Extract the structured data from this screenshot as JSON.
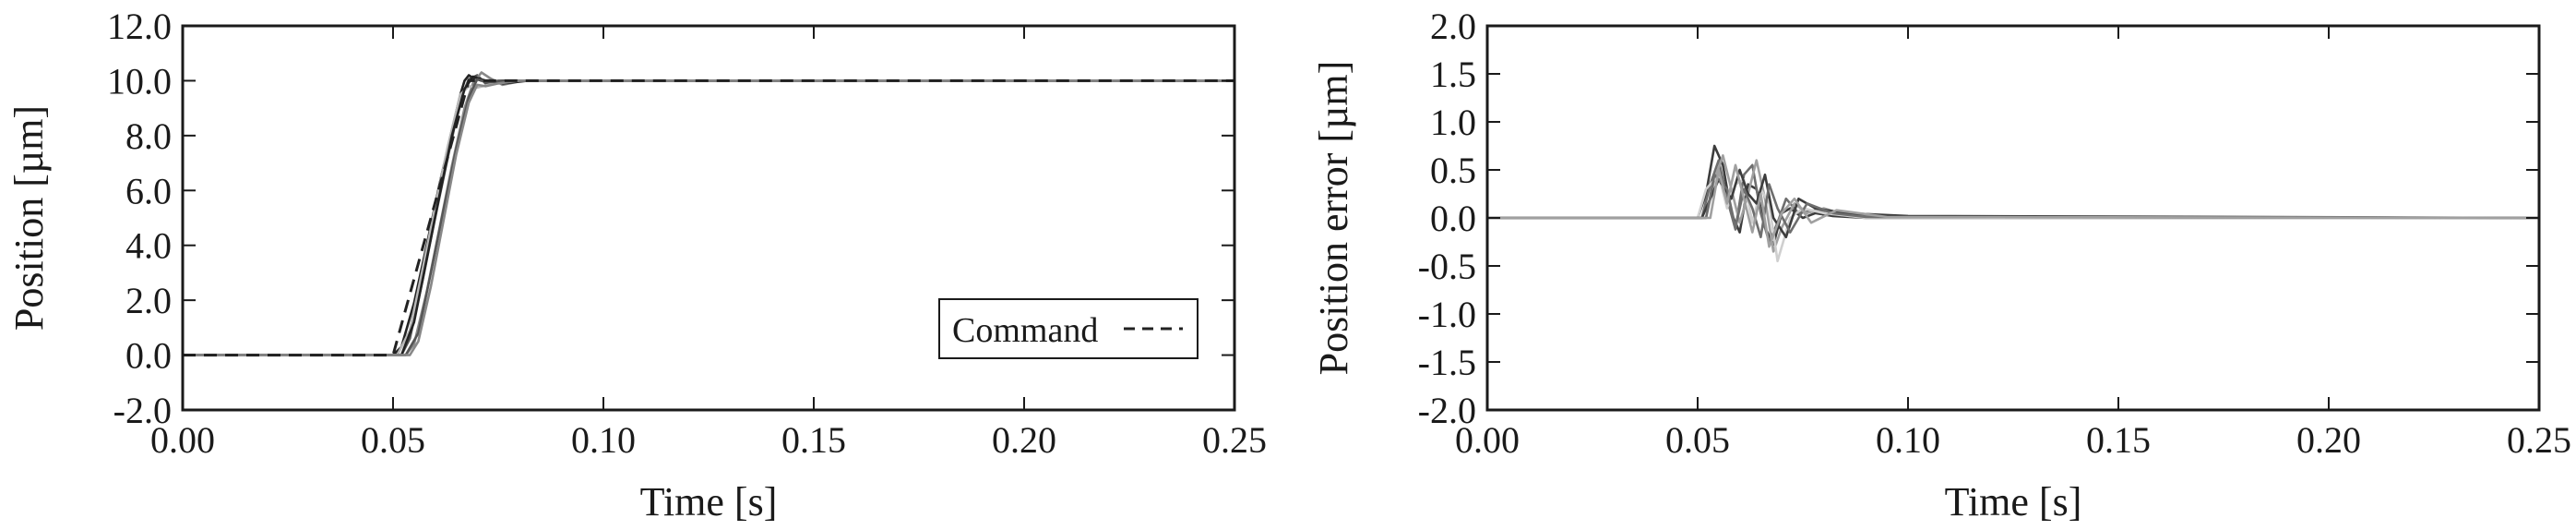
{
  "colors": {
    "axis": "#1a1a1a",
    "trace_palette": [
      "#222222",
      "#3c3c3c",
      "#555555",
      "#6e6e6e",
      "#888888",
      "#a0a0a0",
      "#b8b8b8",
      "#cfcfcf"
    ],
    "command": "#222222"
  },
  "chart_data": [
    {
      "type": "line",
      "xlabel": "Time [s]",
      "ylabel": "Position [µm]",
      "xlim": [
        0.0,
        0.25
      ],
      "ylim": [
        -2.0,
        12.0
      ],
      "xticks": [
        "0.00",
        "0.05",
        "0.10",
        "0.15",
        "0.20",
        "0.25"
      ],
      "yticks": [
        "-2.0",
        "0.0",
        "2.0",
        "4.0",
        "6.0",
        "8.0",
        "10.0",
        "12.0"
      ],
      "grid": false,
      "legend": {
        "placement": "bottom-right",
        "entries": [
          "Command"
        ]
      },
      "command": {
        "name": "Command",
        "style": "dashed",
        "x": [
          0.0,
          0.05,
          0.068,
          0.25
        ],
        "y": [
          0.0,
          0.0,
          10.0,
          10.0
        ]
      },
      "series": [
        {
          "x": [
            0,
            0.05,
            0.052,
            0.055,
            0.058,
            0.061,
            0.064,
            0.066,
            0.067,
            0.068,
            0.069,
            0.071,
            0.073,
            0.076,
            0.08,
            0.09,
            0.25
          ],
          "y": [
            0,
            0.0,
            0.3,
            1.9,
            4.0,
            6.2,
            8.2,
            9.5,
            10.0,
            10.2,
            10.1,
            10.0,
            9.95,
            10.0,
            10.0,
            10.0,
            10.0
          ]
        },
        {
          "x": [
            0,
            0.052,
            0.054,
            0.057,
            0.06,
            0.063,
            0.066,
            0.068,
            0.07,
            0.072,
            0.075,
            0.08,
            0.25
          ],
          "y": [
            0,
            0.0,
            0.6,
            2.7,
            5.0,
            7.2,
            9.3,
            10.05,
            10.2,
            9.9,
            10.0,
            10.0,
            10.0
          ]
        },
        {
          "x": [
            0,
            0.053,
            0.055,
            0.058,
            0.061,
            0.064,
            0.067,
            0.069,
            0.071,
            0.073,
            0.076,
            0.081,
            0.25
          ],
          "y": [
            0,
            0.0,
            0.4,
            2.3,
            4.6,
            6.9,
            9.0,
            9.9,
            10.3,
            10.1,
            9.85,
            10.0,
            10.0
          ]
        },
        {
          "x": [
            0,
            0.051,
            0.054,
            0.057,
            0.06,
            0.063,
            0.066,
            0.068,
            0.07,
            0.074,
            0.079,
            0.25
          ],
          "y": [
            0,
            0.0,
            0.9,
            3.1,
            5.4,
            7.6,
            9.5,
            9.8,
            9.75,
            9.9,
            10.0,
            10.0
          ]
        },
        {
          "x": [
            0,
            0.052,
            0.055,
            0.058,
            0.061,
            0.064,
            0.067,
            0.069,
            0.072,
            0.076,
            0.082,
            0.25
          ],
          "y": [
            0,
            0.0,
            1.2,
            3.5,
            5.8,
            8.0,
            9.7,
            10.15,
            10.0,
            9.9,
            10.0,
            10.0
          ]
        },
        {
          "x": [
            0,
            0.053,
            0.056,
            0.059,
            0.062,
            0.065,
            0.068,
            0.07,
            0.073,
            0.078,
            0.25
          ],
          "y": [
            0,
            0.0,
            0.8,
            3.0,
            5.3,
            7.5,
            9.4,
            10.05,
            9.95,
            10.0,
            10.0
          ]
        },
        {
          "x": [
            0,
            0.054,
            0.056,
            0.059,
            0.062,
            0.065,
            0.068,
            0.07,
            0.072,
            0.075,
            0.08,
            0.25
          ],
          "y": [
            0,
            0.0,
            0.5,
            2.5,
            4.9,
            7.3,
            9.2,
            9.85,
            9.8,
            9.9,
            10.0,
            10.0
          ]
        }
      ]
    },
    {
      "type": "line",
      "xlabel": "Time [s]",
      "ylabel": "Position error [µm]",
      "xlim": [
        0.0,
        0.25
      ],
      "ylim": [
        -2.0,
        2.0
      ],
      "xticks": [
        "0.00",
        "0.05",
        "0.10",
        "0.15",
        "0.20",
        "0.25"
      ],
      "yticks": [
        "-2.0",
        "-1.5",
        "-1.0",
        "-0.5",
        "0.0",
        "0.5",
        "1.0",
        "1.5",
        "2.0"
      ],
      "grid": false,
      "series": [
        {
          "x": [
            0,
            0.05,
            0.052,
            0.054,
            0.056,
            0.058,
            0.06,
            0.062,
            0.064,
            0.066,
            0.068,
            0.07,
            0.072,
            0.075,
            0.078,
            0.082,
            0.09,
            0.1,
            0.25
          ],
          "y": [
            0,
            0.0,
            0.25,
            0.75,
            0.55,
            0.05,
            -0.15,
            0.35,
            0.3,
            -0.1,
            -0.28,
            0.05,
            0.1,
            0.0,
            0.05,
            0.02,
            0.0,
            0.0,
            0.0
          ]
        },
        {
          "x": [
            0,
            0.051,
            0.053,
            0.055,
            0.057,
            0.059,
            0.061,
            0.063,
            0.065,
            0.067,
            0.069,
            0.071,
            0.074,
            0.078,
            0.084,
            0.095,
            0.25
          ],
          "y": [
            0,
            0.0,
            0.35,
            0.6,
            0.2,
            -0.12,
            0.45,
            0.55,
            0.05,
            -0.25,
            -0.05,
            0.2,
            0.05,
            0.08,
            0.03,
            0.01,
            0.0
          ]
        },
        {
          "x": [
            0,
            0.052,
            0.054,
            0.056,
            0.058,
            0.06,
            0.062,
            0.064,
            0.066,
            0.068,
            0.07,
            0.073,
            0.076,
            0.08,
            0.086,
            0.095,
            0.25
          ],
          "y": [
            0,
            0.0,
            0.4,
            0.65,
            0.3,
            -0.05,
            0.25,
            0.6,
            0.2,
            -0.35,
            -0.1,
            0.15,
            0.05,
            0.1,
            0.02,
            0.0,
            0.0
          ]
        },
        {
          "x": [
            0,
            0.05,
            0.052,
            0.055,
            0.057,
            0.059,
            0.061,
            0.063,
            0.065,
            0.067,
            0.069,
            0.072,
            0.075,
            0.08,
            0.09,
            0.25
          ],
          "y": [
            0,
            0.0,
            0.3,
            0.45,
            0.1,
            0.35,
            0.4,
            -0.05,
            0.3,
            0.15,
            -0.45,
            0.0,
            0.1,
            0.05,
            0.0,
            0.0
          ]
        },
        {
          "x": [
            0,
            0.051,
            0.053,
            0.055,
            0.058,
            0.06,
            0.062,
            0.064,
            0.066,
            0.068,
            0.071,
            0.074,
            0.078,
            0.085,
            0.1,
            0.25
          ],
          "y": [
            0,
            0.0,
            0.2,
            0.4,
            0.2,
            0.5,
            0.25,
            0.15,
            0.45,
            0.0,
            -0.2,
            0.2,
            0.1,
            0.05,
            0.02,
            0.0
          ]
        },
        {
          "x": [
            0,
            0.052,
            0.054,
            0.057,
            0.059,
            0.061,
            0.063,
            0.065,
            0.067,
            0.069,
            0.072,
            0.076,
            0.082,
            0.09,
            0.25
          ],
          "y": [
            0,
            0.0,
            0.45,
            0.3,
            -0.1,
            0.3,
            0.1,
            -0.2,
            0.35,
            0.1,
            -0.15,
            0.15,
            0.05,
            0.01,
            0.0
          ]
        },
        {
          "x": [
            0,
            0.053,
            0.055,
            0.057,
            0.059,
            0.061,
            0.063,
            0.065,
            0.067,
            0.07,
            0.073,
            0.077,
            0.083,
            0.095,
            0.25
          ],
          "y": [
            0,
            0.0,
            0.5,
            0.15,
            0.55,
            0.2,
            -0.15,
            0.25,
            -0.3,
            0.05,
            0.2,
            -0.05,
            0.08,
            0.01,
            0.0
          ]
        }
      ]
    }
  ]
}
